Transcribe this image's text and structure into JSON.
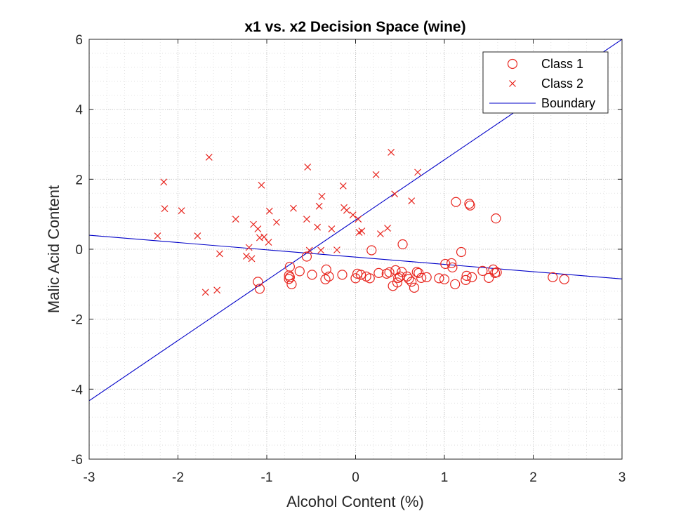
{
  "chart_data": {
    "type": "scatter",
    "title": "x1 vs. x2 Decision Space (wine)",
    "xlabel": "Alcohol Content (%)",
    "ylabel": "Malic Acid Content",
    "xlim": [
      -3,
      3
    ],
    "ylim": [
      -6,
      6
    ],
    "xticks": [
      -3,
      -2,
      -1,
      0,
      1,
      2,
      3
    ],
    "yticks": [
      -6,
      -4,
      -2,
      0,
      2,
      4,
      6
    ],
    "xtick_labels": [
      "-3",
      "-2",
      "-1",
      "0",
      "1",
      "2",
      "3"
    ],
    "ytick_labels": [
      "-6",
      "-4",
      "-2",
      "0",
      "2",
      "4",
      "6"
    ],
    "grid": true,
    "minor_grid": true,
    "legend_position": "top-right",
    "series": [
      {
        "name": "Class 1",
        "marker": "circle",
        "color": "#e8261f",
        "points": [
          [
            -1.1,
            -0.93
          ],
          [
            -1.08,
            -1.13
          ],
          [
            -0.74,
            -0.5
          ],
          [
            -0.75,
            -0.75
          ],
          [
            -0.74,
            -0.8
          ],
          [
            -0.75,
            -0.85
          ],
          [
            -0.72,
            -1.0
          ],
          [
            -0.63,
            -0.63
          ],
          [
            -0.55,
            -0.21
          ],
          [
            -0.49,
            -0.73
          ],
          [
            -0.34,
            -0.86
          ],
          [
            -0.33,
            -0.58
          ],
          [
            -0.3,
            -0.78
          ],
          [
            -0.15,
            -0.73
          ],
          [
            0.0,
            -0.83
          ],
          [
            0.02,
            -0.7
          ],
          [
            0.06,
            -0.73
          ],
          [
            0.12,
            -0.78
          ],
          [
            0.16,
            -0.83
          ],
          [
            0.18,
            -0.03
          ],
          [
            0.26,
            -0.68
          ],
          [
            0.35,
            -0.7
          ],
          [
            0.38,
            -0.66
          ],
          [
            0.42,
            -1.05
          ],
          [
            0.45,
            -0.6
          ],
          [
            0.47,
            -0.95
          ],
          [
            0.48,
            -0.82
          ],
          [
            0.5,
            -0.78
          ],
          [
            0.52,
            -0.65
          ],
          [
            0.53,
            0.14
          ],
          [
            0.58,
            -0.78
          ],
          [
            0.6,
            -0.85
          ],
          [
            0.63,
            -0.93
          ],
          [
            0.66,
            -1.1
          ],
          [
            0.69,
            -0.65
          ],
          [
            0.71,
            -0.68
          ],
          [
            0.74,
            -0.82
          ],
          [
            0.8,
            -0.8
          ],
          [
            0.94,
            -0.83
          ],
          [
            1.0,
            -0.86
          ],
          [
            1.01,
            -0.42
          ],
          [
            1.08,
            -0.4
          ],
          [
            1.09,
            -0.52
          ],
          [
            1.12,
            -1.0
          ],
          [
            1.13,
            1.35
          ],
          [
            1.19,
            -0.08
          ],
          [
            1.24,
            -0.88
          ],
          [
            1.25,
            -0.76
          ],
          [
            1.28,
            1.3
          ],
          [
            1.29,
            1.25
          ],
          [
            1.31,
            -0.8
          ],
          [
            1.43,
            -0.62
          ],
          [
            1.5,
            -0.82
          ],
          [
            1.55,
            -0.58
          ],
          [
            1.57,
            -0.68
          ],
          [
            1.58,
            0.88
          ],
          [
            1.59,
            -0.66
          ],
          [
            2.22,
            -0.8
          ],
          [
            2.35,
            -0.86
          ]
        ]
      },
      {
        "name": "Class 2",
        "marker": "x",
        "color": "#e8261f",
        "points": [
          [
            -2.23,
            0.38
          ],
          [
            -2.16,
            1.92
          ],
          [
            -2.15,
            1.16
          ],
          [
            -1.96,
            1.1
          ],
          [
            -1.78,
            0.38
          ],
          [
            -1.69,
            -1.23
          ],
          [
            -1.65,
            2.63
          ],
          [
            -1.56,
            -1.17
          ],
          [
            -1.53,
            -0.13
          ],
          [
            -1.35,
            0.86
          ],
          [
            -1.23,
            -0.2
          ],
          [
            -1.2,
            0.05
          ],
          [
            -1.17,
            -0.27
          ],
          [
            -1.15,
            0.71
          ],
          [
            -1.1,
            0.58
          ],
          [
            -1.08,
            0.33
          ],
          [
            -1.06,
            1.83
          ],
          [
            -1.03,
            0.35
          ],
          [
            -0.98,
            0.2
          ],
          [
            -0.97,
            1.09
          ],
          [
            -0.89,
            0.77
          ],
          [
            -0.7,
            1.17
          ],
          [
            -0.55,
            0.86
          ],
          [
            -0.54,
            2.35
          ],
          [
            -0.52,
            -0.03
          ],
          [
            -0.43,
            0.63
          ],
          [
            -0.41,
            1.23
          ],
          [
            -0.39,
            -0.03
          ],
          [
            -0.38,
            1.51
          ],
          [
            -0.27,
            0.58
          ],
          [
            -0.21,
            -0.02
          ],
          [
            -0.14,
            1.81
          ],
          [
            -0.13,
            1.19
          ],
          [
            -0.1,
            1.11
          ],
          [
            -0.03,
            0.98
          ],
          [
            0.03,
            0.86
          ],
          [
            0.04,
            0.48
          ],
          [
            0.07,
            0.52
          ],
          [
            0.23,
            2.13
          ],
          [
            0.28,
            0.44
          ],
          [
            0.36,
            0.6
          ],
          [
            0.4,
            2.77
          ],
          [
            0.44,
            1.58
          ],
          [
            0.63,
            1.38
          ],
          [
            0.7,
            2.2
          ]
        ]
      },
      {
        "name": "Boundary",
        "type": "line",
        "color": "#0000c8",
        "segments": [
          [
            [
              -3,
              -4.33
            ],
            [
              3,
              6.0
            ]
          ],
          [
            [
              -3,
              0.4
            ],
            [
              3,
              -0.85
            ]
          ]
        ]
      }
    ]
  }
}
